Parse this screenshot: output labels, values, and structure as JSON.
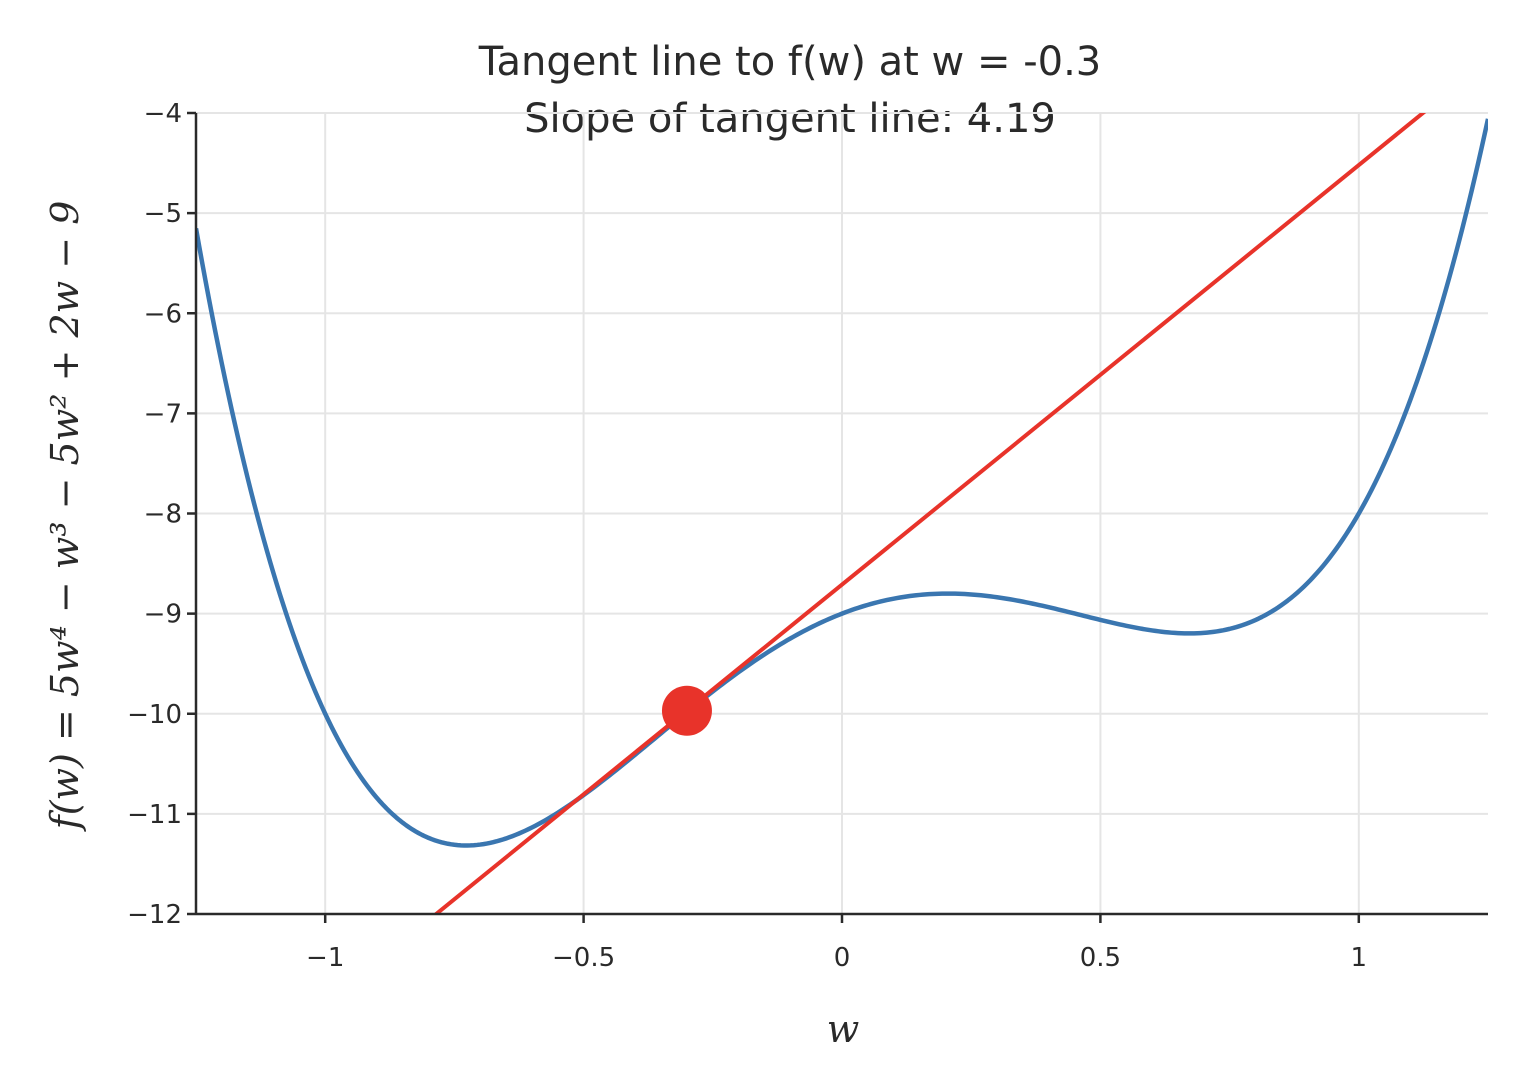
{
  "chart_data": {
    "type": "line",
    "title_line1": "Tangent line to f(w) at w = -0.3",
    "title_line2": "Slope of tangent line: 4.19",
    "xlabel": "w",
    "ylabel": "f(w) = 5w⁴ − w³ − 5w² + 2w − 9",
    "xlim": [
      -1.25,
      1.25
    ],
    "ylim": [
      -12,
      -4
    ],
    "x_ticks": [
      -1,
      -0.5,
      0,
      0.5,
      1
    ],
    "x_tick_labels": [
      "−1",
      "−0.5",
      "0",
      "0.5",
      "1"
    ],
    "y_ticks": [
      -4,
      -5,
      -6,
      -7,
      -8,
      -9,
      -10,
      -11,
      -12
    ],
    "y_tick_labels": [
      "−4",
      "−5",
      "−6",
      "−7",
      "−8",
      "−9",
      "−10",
      "−11",
      "−12"
    ],
    "grid": true,
    "function": {
      "coefficients_w4_to_w0": [
        5,
        -1,
        -5,
        2,
        -9
      ],
      "x_range": [
        -1.25,
        1.25
      ],
      "color": "#3a76b0"
    },
    "tangent": {
      "slope": 4.19,
      "intercept": -8.71,
      "color": "#e8332a"
    },
    "point": {
      "x": -0.3,
      "y": -9.97,
      "color": "#e8332a"
    }
  }
}
